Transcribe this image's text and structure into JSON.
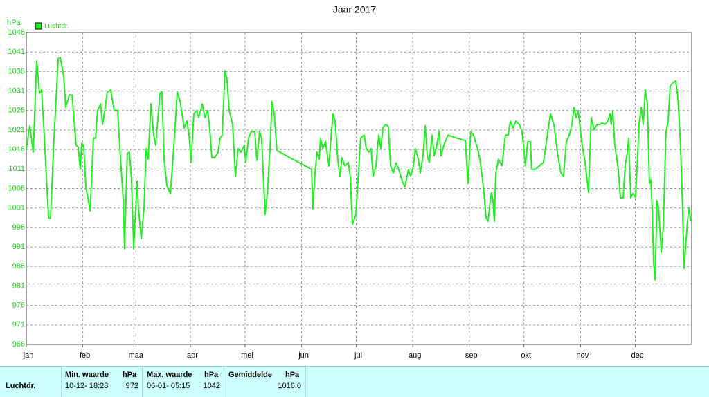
{
  "chart_data": {
    "type": "line",
    "title": "Jaar 2017",
    "y_label": "hPa",
    "xlim": [
      0,
      365
    ],
    "xticks": [
      {
        "value": 0,
        "label": "jan"
      },
      {
        "value": 31,
        "label": "feb"
      },
      {
        "value": 59,
        "label": "maa"
      },
      {
        "value": 90,
        "label": "apr"
      },
      {
        "value": 120,
        "label": "mei"
      },
      {
        "value": 151,
        "label": "jun"
      },
      {
        "value": 181,
        "label": "jul"
      },
      {
        "value": 212,
        "label": "aug"
      },
      {
        "value": 243,
        "label": "sep"
      },
      {
        "value": 273,
        "label": "okt"
      },
      {
        "value": 304,
        "label": "nov"
      },
      {
        "value": 334,
        "label": "dec"
      }
    ],
    "ylim": [
      966,
      1046
    ],
    "yticks": [
      966,
      971,
      976,
      981,
      986,
      991,
      996,
      1001,
      1006,
      1011,
      1016,
      1021,
      1026,
      1031,
      1036,
      1041,
      1046
    ],
    "grid": true,
    "legend": "top-left",
    "x": [
      0,
      1.9,
      3.8,
      5.7,
      7.2,
      8.4,
      9.9,
      12.2,
      13.3,
      15.2,
      17.5,
      18.6,
      20.5,
      21.6,
      23.6,
      25.1,
      27.3,
      28.5,
      29.6,
      30.4,
      31.5,
      32.7,
      35,
      36.8,
      38,
      39.1,
      40.7,
      41.8,
      42.5,
      44.4,
      46.3,
      48.2,
      50.1,
      51.7,
      53.2,
      53.9,
      55.4,
      56.6,
      57.7,
      58.9,
      60,
      60.8,
      61.5,
      63,
      64.6,
      65.7,
      66.8,
      68.4,
      69.9,
      71,
      73.3,
      74.4,
      75.6,
      77.1,
      79,
      80.5,
      82.8,
      84.3,
      86.6,
      88.1,
      89.3,
      90.4,
      91.9,
      93.4,
      94.6,
      96.5,
      98,
      99.5,
      100.6,
      101.8,
      103.3,
      105.2,
      106.3,
      107.5,
      109,
      110.1,
      111.3,
      113.2,
      114.7,
      116.2,
      117.7,
      119.6,
      120.4,
      121.9,
      123.4,
      125.3,
      126.5,
      128,
      129.1,
      131,
      132.2,
      133.7,
      134.8,
      136,
      137.5,
      156.5,
      157.2,
      158.4,
      159.5,
      160.7,
      161.4,
      162.6,
      164.1,
      166,
      167.1,
      168.3,
      169.4,
      170.9,
      172,
      173.2,
      174.7,
      175.5,
      176.6,
      177.7,
      178.9,
      180.8,
      182.3,
      183.4,
      185.3,
      186.5,
      188,
      189.1,
      190.3,
      191.8,
      193.3,
      194.5,
      195.6,
      197.1,
      198.6,
      199.8,
      201.3,
      202.8,
      204.3,
      206.2,
      207.7,
      209.6,
      210.8,
      212.3,
      213.4,
      215,
      216.1,
      217.6,
      218.8,
      219.9,
      221,
      222.6,
      223.7,
      224.8,
      226.4,
      227.5,
      229,
      231.3,
      236.2,
      240.8,
      242.3,
      243.8,
      245.3,
      247.6,
      249.1,
      250.7,
      252.2,
      253.3,
      254.5,
      255.2,
      256,
      256.7,
      257.5,
      259,
      260.9,
      262.8,
      264.3,
      265.5,
      267,
      268.5,
      270.4,
      271.9,
      273.8,
      275,
      276.5,
      277.2,
      279.1,
      283.7,
      285.6,
      287.5,
      289.4,
      291.3,
      293.2,
      294.7,
      296.2,
      297.8,
      299.3,
      300.4,
      301.6,
      302.7,
      304.6,
      306.5,
      308.4,
      309.9,
      311.4,
      313,
      314.5,
      316,
      317.5,
      319,
      320.2,
      320.9,
      321.7,
      322.8,
      324.7,
      325.9,
      327.4,
      328.5,
      329.7,
      330.4,
      331.6,
      332.7,
      334.2,
      335,
      336.1,
      337.3,
      338.4,
      339.5,
      340.7,
      341.8,
      342.6,
      343.3,
      344.1,
      344.9,
      346,
      346.8,
      348.3,
      349.4,
      350.2,
      350.9,
      352.1,
      353.2,
      354.7,
      356.2,
      357.4,
      358.9,
      360,
      360.8,
      362.7,
      363.5,
      364.6
    ],
    "series": [
      {
        "name": "Luchtdr.",
        "color": "#22ee22",
        "values": [
          1016.2,
          1022.1,
          1015.3,
          1038.7,
          1030.4,
          1031.3,
          1018.9,
          998.5,
          998.3,
          1018.9,
          1039.3,
          1039.6,
          1034.8,
          1026.8,
          1030,
          1030,
          1017.1,
          1016.6,
          1010.9,
          1017.6,
          1017.1,
          1006.4,
          1000.2,
          1018.9,
          1018.9,
          1026,
          1027.7,
          1022.4,
          1024.2,
          1030.7,
          1031.3,
          1026,
          1026,
          1013.5,
          1002.9,
          990.5,
          1015,
          1015.3,
          1008.2,
          990.5,
          1001.1,
          1007.9,
          1001.1,
          993.1,
          1001.1,
          1016.2,
          1013.5,
          1027.7,
          1019.7,
          1017.1,
          1030.4,
          1030.9,
          1013.5,
          1006.8,
          1004.7,
          1013.5,
          1030.7,
          1028.6,
          1021.5,
          1023.3,
          1019.7,
          1012.7,
          1025.1,
          1026,
          1024.2,
          1027.7,
          1024.2,
          1026,
          1021.5,
          1013.9,
          1013.9,
          1015.3,
          1018.9,
          1019.7,
          1036.2,
          1033.9,
          1026,
          1022.4,
          1009.1,
          1016.2,
          1015.3,
          1017.1,
          1012.7,
          1018.9,
          1020.6,
          1020.6,
          1013.2,
          1020.6,
          1018.9,
          999.3,
          1004.7,
          1016.2,
          1028.3,
          1025.1,
          1015.7,
          1010.9,
          1000.8,
          1010,
          1015.3,
          1013.5,
          1018.9,
          1016.2,
          1018,
          1011.8,
          1018.9,
          1025.1,
          1023.3,
          1013.2,
          1009.1,
          1013.9,
          1011.8,
          1012.1,
          1012.7,
          1009.1,
          996.7,
          999.3,
          1010.9,
          1018.9,
          1019.7,
          1016.2,
          1015.3,
          1016.2,
          1009.1,
          1011.8,
          1019.7,
          1016.2,
          1021.5,
          1022.4,
          1021.9,
          1011.8,
          1010,
          1012.5,
          1010.9,
          1007.9,
          1006.4,
          1010.9,
          1009.1,
          1011.8,
          1016.2,
          1013.5,
          1010,
          1014.4,
          1022.1,
          1014.4,
          1012.7,
          1019.7,
          1014.4,
          1016.2,
          1020.6,
          1014.4,
          1017.1,
          1019.7,
          1018.9,
          1018.3,
          1007.3,
          1020.6,
          1019.7,
          1016.2,
          1012.7,
          1006.4,
          998.5,
          997.6,
          1002.9,
          1005,
          1002.9,
          997.6,
          1010,
          1013.5,
          1011.8,
          1019.7,
          1019.7,
          1023.3,
          1021.5,
          1023.3,
          1022.4,
          1020.6,
          1011.8,
          1018,
          1018,
          1010.9,
          1010.9,
          1012.7,
          1018.9,
          1025.1,
          1022.4,
          1015.3,
          1010,
          1009.1,
          1018,
          1019.7,
          1022.4,
          1026.8,
          1024.2,
          1026,
          1018,
          1012.7,
          1005,
          1024.2,
          1021,
          1022.4,
          1022.4,
          1022.8,
          1022.4,
          1023.3,
          1025.1,
          1022.4,
          1026,
          1017.1,
          1010.9,
          1003.6,
          1003.6,
          1011.8,
          1015.3,
          1018.9,
          1003.6,
          1004.7,
          1003.8,
          1010.9,
          1022.4,
          1026.8,
          1022.4,
          1031.3,
          1027.7,
          1007.3,
          1008.2,
          1001.1,
          986.9,
          982.5,
          1002.9,
          1001.1,
          989.6,
          995.8,
          1009.1,
          1020.6,
          1023.3,
          1032.2,
          1033.1,
          1033.6,
          1029.5,
          1017.1,
          1001.1,
          985.5,
          997.6,
          1001.1,
          997.6
        ]
      }
    ]
  },
  "stats": {
    "headers": [
      {
        "label": "Min. waarde",
        "unit": "hPa"
      },
      {
        "label": "Max. waarde",
        "unit": "hPa"
      },
      {
        "label": "Gemiddelde",
        "unit": "hPa"
      }
    ],
    "rows": [
      {
        "name": "Luchtdr.",
        "min_time": "10-12- 18:28",
        "min": "972",
        "max_time": "06-01- 05:15",
        "max": "1042",
        "mean": "1016.0"
      }
    ]
  }
}
